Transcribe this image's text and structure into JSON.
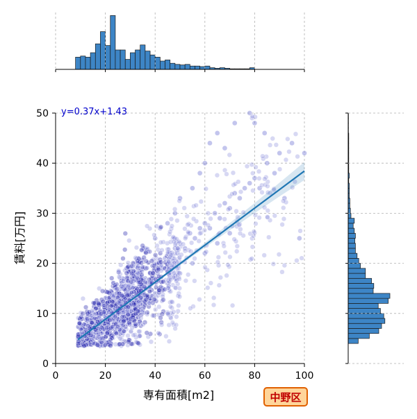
{
  "chart_data": {
    "type": "scatter",
    "xlabel": "専有面積[m2]",
    "ylabel": "賃料[万円]",
    "xlim": [
      0,
      100
    ],
    "ylim": [
      0,
      50
    ],
    "xticks": [
      "0",
      "20",
      "40",
      "60",
      "80",
      "100"
    ],
    "yticks": [
      "0",
      "10",
      "20",
      "30",
      "40",
      "50"
    ],
    "grid": true,
    "annotation": "y=0.37x+1.43",
    "badge": "中野区",
    "regression": {
      "slope": 0.37,
      "intercept": 1.43,
      "x_range": [
        9,
        100
      ]
    },
    "scatter_points": [
      [
        9,
        5
      ],
      [
        10,
        6
      ],
      [
        11,
        5.5
      ],
      [
        12,
        6.5
      ],
      [
        13,
        5
      ],
      [
        14,
        7
      ],
      [
        15,
        7.5
      ],
      [
        16,
        6
      ],
      [
        17,
        8
      ],
      [
        18,
        7
      ],
      [
        19,
        8.5
      ],
      [
        20,
        9
      ],
      [
        21,
        8
      ],
      [
        22,
        10
      ],
      [
        23,
        9
      ],
      [
        24,
        11
      ],
      [
        25,
        10
      ],
      [
        26,
        12
      ],
      [
        27,
        11
      ],
      [
        28,
        13
      ],
      [
        29,
        12
      ],
      [
        30,
        14
      ],
      [
        31,
        13
      ],
      [
        32,
        15
      ],
      [
        33,
        14
      ],
      [
        34,
        16
      ],
      [
        35,
        15
      ],
      [
        36,
        17
      ],
      [
        37,
        16
      ],
      [
        38,
        18
      ],
      [
        39,
        17
      ],
      [
        40,
        19
      ],
      [
        41,
        18
      ],
      [
        42,
        20
      ],
      [
        43,
        19
      ],
      [
        44,
        21
      ],
      [
        45,
        20
      ],
      [
        46,
        22
      ],
      [
        47,
        21
      ],
      [
        48,
        23
      ],
      [
        49,
        22
      ],
      [
        50,
        24
      ],
      [
        52,
        23
      ],
      [
        54,
        26
      ],
      [
        56,
        25
      ],
      [
        58,
        27
      ],
      [
        60,
        28
      ],
      [
        62,
        27
      ],
      [
        64,
        30
      ],
      [
        66,
        29
      ],
      [
        68,
        32
      ],
      [
        70,
        31
      ],
      [
        72,
        34
      ],
      [
        74,
        33
      ],
      [
        76,
        35
      ],
      [
        78,
        36
      ],
      [
        80,
        37
      ],
      [
        82,
        35
      ],
      [
        85,
        40
      ],
      [
        88,
        38
      ],
      [
        90,
        42
      ],
      [
        92,
        33
      ],
      [
        95,
        44
      ],
      [
        98,
        25
      ],
      [
        100,
        42
      ],
      [
        12,
        4.5
      ],
      [
        15,
        5
      ],
      [
        18,
        5.5
      ],
      [
        20,
        6
      ],
      [
        22,
        7
      ],
      [
        25,
        8
      ],
      [
        28,
        9
      ],
      [
        30,
        10
      ],
      [
        33,
        11
      ],
      [
        35,
        12
      ],
      [
        38,
        13
      ],
      [
        40,
        14
      ],
      [
        43,
        15
      ],
      [
        45,
        16
      ],
      [
        48,
        17
      ],
      [
        50,
        18
      ],
      [
        55,
        20
      ],
      [
        60,
        22
      ],
      [
        65,
        24
      ],
      [
        70,
        26
      ],
      [
        15,
        10
      ],
      [
        18,
        12
      ],
      [
        20,
        13
      ],
      [
        24,
        15
      ],
      [
        27,
        17
      ],
      [
        30,
        19
      ],
      [
        33,
        21
      ],
      [
        36,
        23
      ],
      [
        40,
        25
      ],
      [
        42,
        27
      ],
      [
        45,
        28
      ],
      [
        48,
        30
      ],
      [
        50,
        33
      ],
      [
        55,
        35
      ],
      [
        58,
        38
      ],
      [
        60,
        40
      ],
      [
        62,
        44
      ],
      [
        65,
        46
      ],
      [
        68,
        43
      ],
      [
        72,
        48
      ],
      [
        78,
        50
      ],
      [
        80,
        48
      ],
      [
        84,
        46
      ]
    ],
    "marginal_x_hist": {
      "bin_width": 2,
      "start": 8,
      "counts": [
        0.22,
        0.24,
        0.22,
        0.3,
        0.46,
        0.68,
        0.43,
        0.97,
        0.35,
        0.35,
        0.18,
        0.3,
        0.35,
        0.44,
        0.33,
        0.26,
        0.22,
        0.15,
        0.17,
        0.11,
        0.09,
        0.08,
        0.09,
        0.06,
        0.06,
        0.05,
        0.06,
        0.03,
        0.02,
        0.03,
        0.02,
        0.01,
        0.01,
        0.01,
        0.01,
        0.03
      ]
    },
    "marginal_y_hist": {
      "bin_width": 1,
      "start": 4,
      "counts": [
        0.18,
        0.38,
        0.55,
        0.6,
        0.66,
        0.64,
        0.58,
        0.54,
        0.72,
        0.75,
        0.45,
        0.46,
        0.42,
        0.31,
        0.31,
        0.22,
        0.19,
        0.16,
        0.13,
        0.13,
        0.12,
        0.13,
        0.11,
        0.09,
        0.11,
        0.05,
        0.04,
        0.03,
        0.03,
        0.02,
        0.02,
        0.02,
        0.01,
        0.02,
        0.01,
        0.01,
        0.01,
        0.01,
        0.01,
        0.01,
        0.01,
        0.01,
        0.005,
        0.005,
        0.005,
        0.005
      ]
    },
    "colors": {
      "scatter_fill": "#7b7fd8",
      "scatter_dark": "#1a1aa8",
      "regression": "#1f77b4",
      "hist_fill": "#3d85c6",
      "annotation": "#0000cc",
      "badge_bg": "#ffd59a",
      "badge_border": "#e06000",
      "badge_text": "#c00000"
    }
  }
}
